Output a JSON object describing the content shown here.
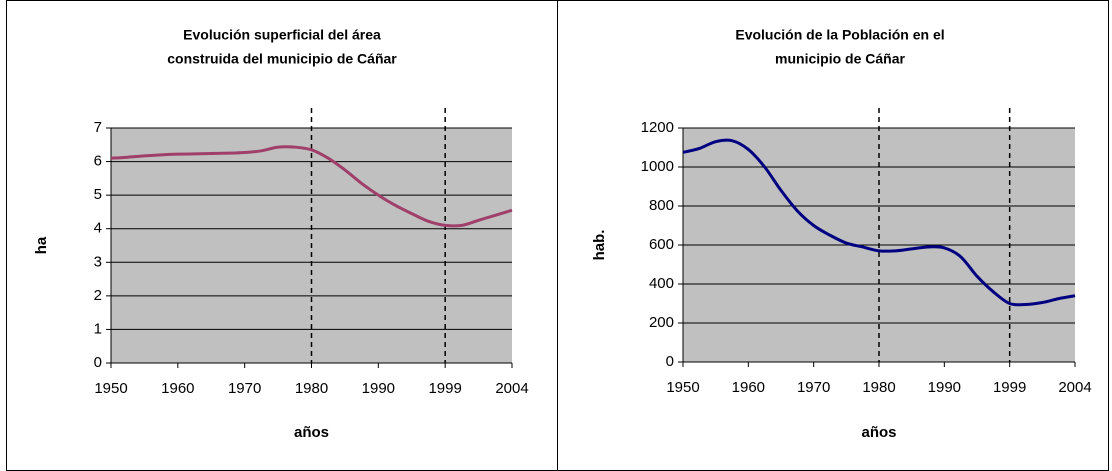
{
  "chart_data": [
    {
      "type": "line",
      "title": [
        "Evolución superficial del área",
        "construida del municipio de Cáñar"
      ],
      "y_label": "ha",
      "x_label": "años",
      "categories": [
        "1950",
        null,
        null,
        null,
        "1960",
        null,
        null,
        null,
        "1970",
        null,
        null,
        null,
        "1980",
        null,
        null,
        null,
        "1990",
        null,
        null,
        null,
        "1999",
        null,
        null,
        null,
        "2004"
      ],
      "series": [
        {
          "name": "ha",
          "color": "#a0406a",
          "values": [
            6.1,
            6.13,
            6.17,
            6.2,
            6.22,
            6.23,
            6.24,
            6.25,
            6.27,
            6.32,
            6.43,
            6.43,
            6.35,
            6.1,
            5.75,
            5.35,
            5.0,
            4.7,
            4.45,
            4.22,
            4.1,
            4.1,
            4.25,
            4.4,
            4.55
          ]
        }
      ],
      "ylim": [
        0,
        7
      ],
      "yticks": [
        0,
        1,
        2,
        3,
        4,
        5,
        6,
        7
      ],
      "grid": true,
      "reference_lines": [
        "1980",
        "1999"
      ]
    },
    {
      "type": "line",
      "title": [
        "Evolución de la Población en el",
        "municipio de Cáñar"
      ],
      "y_label": "hab.",
      "x_label": "años",
      "categories": [
        "1950",
        null,
        null,
        null,
        "1960",
        null,
        null,
        null,
        "1970",
        null,
        null,
        null,
        "1980",
        null,
        null,
        null,
        "1990",
        null,
        null,
        null,
        "1999",
        null,
        null,
        null,
        "2004"
      ],
      "series": [
        {
          "name": "hab.",
          "color": "#000080",
          "values": [
            1075,
            1095,
            1130,
            1135,
            1090,
            1000,
            880,
            775,
            700,
            650,
            610,
            590,
            570,
            570,
            580,
            590,
            585,
            540,
            440,
            360,
            300,
            295,
            305,
            325,
            340
          ]
        }
      ],
      "ylim": [
        0,
        1200
      ],
      "yticks": [
        0,
        200,
        400,
        600,
        800,
        1000,
        1200
      ],
      "grid": true,
      "reference_lines": [
        "1980",
        "1999"
      ]
    }
  ]
}
